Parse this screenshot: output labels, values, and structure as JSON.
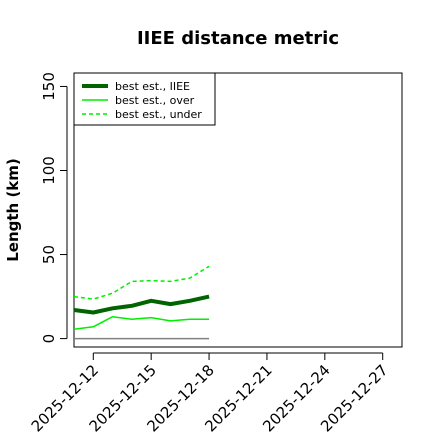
{
  "chart_data": {
    "type": "line",
    "title": "IIEE distance metric",
    "xlabel": "",
    "ylabel": "Length (km)",
    "xlim": [
      "2025-12-11",
      "2025-12-28"
    ],
    "ylim": [
      -5,
      158
    ],
    "yticks": [
      0,
      50,
      100,
      150
    ],
    "ytick_labels": [
      "0",
      "50",
      "100",
      "150"
    ],
    "xticks": [
      "2025-12-12",
      "2025-12-15",
      "2025-12-18",
      "2025-12-21",
      "2025-12-24",
      "2025-12-27"
    ],
    "xtick_labels": [
      "2025-12-12",
      "2025-12-15",
      "2025-12-18",
      "2025-12-21",
      "2025-12-24",
      "2025-12-27"
    ],
    "x": [
      "2025-12-11",
      "2025-12-12",
      "2025-12-13",
      "2025-12-14",
      "2025-12-15",
      "2025-12-16",
      "2025-12-17",
      "2025-12-18"
    ],
    "series": [
      {
        "name": "best est., IIEE",
        "color": "#006400",
        "style": "solid",
        "width": 4,
        "values": [
          17,
          15.5,
          18,
          19.5,
          22.5,
          20.5,
          22.5,
          25
        ]
      },
      {
        "name": "best est., over",
        "color": "#00ee00",
        "style": "solid",
        "width": 1.5,
        "values": [
          5.5,
          7,
          13,
          11.5,
          12.5,
          10.5,
          11.5,
          11.5
        ]
      },
      {
        "name": "best est., under",
        "color": "#00ee00",
        "style": "dashed",
        "width": 1.5,
        "values": [
          25,
          23.5,
          27,
          34,
          34.5,
          34,
          36,
          43
        ]
      },
      {
        "color": "#808080",
        "style": "solid",
        "width": 1.5,
        "values": [
          0,
          0,
          0,
          0,
          0,
          0,
          0,
          0
        ]
      }
    ],
    "legend_placement": "top-left",
    "grid": false
  }
}
